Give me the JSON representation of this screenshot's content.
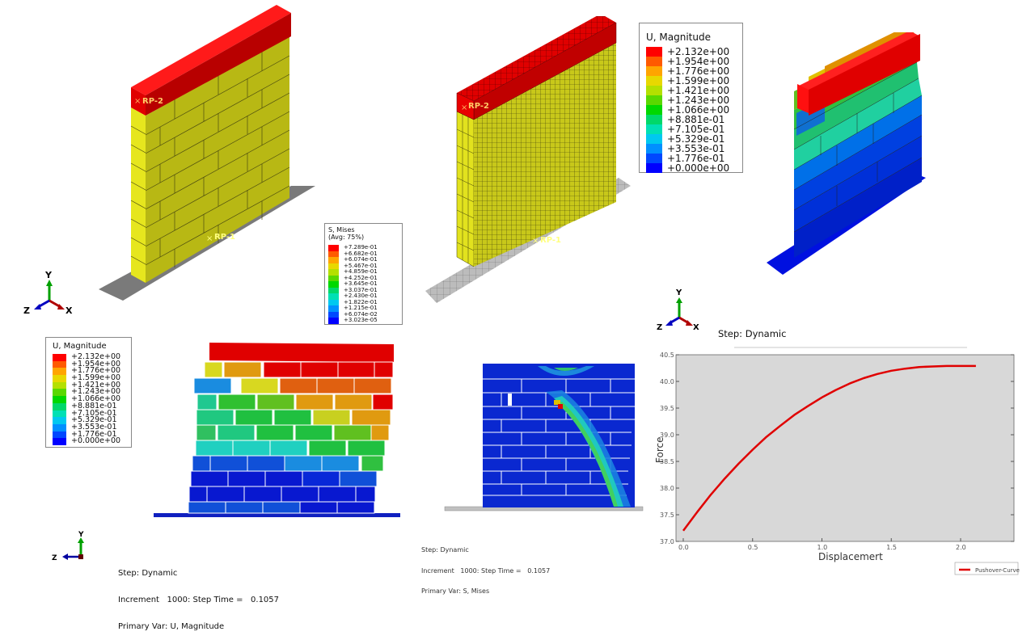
{
  "views": {
    "undeformed_coarse": {
      "ref_points": [
        "RP-2",
        "RP-1"
      ],
      "colors": {
        "wall": "#d2d21a",
        "beam": "#e00000",
        "base": "#808080"
      }
    },
    "meshed": {
      "ref_points": [
        "RP-2",
        "RP-1"
      ],
      "colors": {
        "wall": "#d2d21a",
        "beam": "#e00000",
        "base": "#b8b8b8"
      }
    },
    "deformed_3d": {
      "legend": {
        "title": "U, Magnitude",
        "values": [
          "+2.132e+00",
          "+1.954e+00",
          "+1.776e+00",
          "+1.599e+00",
          "+1.421e+00",
          "+1.243e+00",
          "+1.066e+00",
          "+8.881e-01",
          "+7.105e-01",
          "+5.329e-01",
          "+3.553e-01",
          "+1.776e-01",
          "+0.000e+00"
        ]
      },
      "triad": {
        "x": "X",
        "y": "Y",
        "z": "Z"
      },
      "info": {
        "step": "Step: Dynamic",
        "increment": "Increment   1000: Step Time =   0.1057",
        "primary_var": "Primary Var: U, Magnitude"
      }
    },
    "stress_legend": {
      "title": "S, Mises",
      "subtitle": "(Avg: 75%)",
      "values": [
        "+7.289e-01",
        "+6.682e-01",
        "+6.074e-01",
        "+5.467e-01",
        "+4.859e-01",
        "+4.252e-01",
        "+3.645e-01",
        "+3.037e-01",
        "+2.430e-01",
        "+1.822e-01",
        "+1.215e-01",
        "+6.074e-02",
        "+3.023e-05"
      ]
    },
    "deformed_front_u": {
      "legend": {
        "title": "U, Magnitude",
        "values": [
          "+2.132e+00",
          "+1.954e+00",
          "+1.776e+00",
          "+1.599e+00",
          "+1.421e+00",
          "+1.243e+00",
          "+1.066e+00",
          "+8.881e-01",
          "+7.105e-01",
          "+5.329e-01",
          "+3.553e-01",
          "+1.776e-01",
          "+0.000e+00"
        ]
      },
      "triad": {
        "y": "Y",
        "z": "Z"
      },
      "info": {
        "step": "Step: Dynamic",
        "increment": "Increment   1000: Step Time =   0.1057",
        "primary_var": "Primary Var: U, Magnitude"
      }
    },
    "deformed_front_s": {
      "info": {
        "step": "Step: Dynamic",
        "increment": "Increment   1000: Step Time =   0.1057",
        "primary_var": "Primary Var: S, Mises"
      }
    },
    "main_triad": {
      "x": "X",
      "y": "Y",
      "z": "Z"
    }
  },
  "colormap": [
    "#ff0000",
    "#ff5a00",
    "#ffa500",
    "#e8d800",
    "#b4e000",
    "#5ad800",
    "#00d800",
    "#00d86a",
    "#00e0b4",
    "#00c8f0",
    "#0090ff",
    "#0048ff",
    "#0000ff"
  ],
  "chart_data": {
    "type": "line",
    "title": "",
    "xlabel": "Displacemert",
    "ylabel": "Force",
    "xlim": [
      0.0,
      2.35
    ],
    "ylim": [
      37.0,
      40.5
    ],
    "x_ticks": [
      "0.0",
      "0.5",
      "1.0",
      "1.5",
      "2.0"
    ],
    "y_ticks": [
      "37.0",
      "37.5",
      "38.0",
      "38.5",
      "39.0",
      "39.5",
      "40.0",
      "40.5"
    ],
    "grid": false,
    "legend_position": "lower right",
    "background": "#d8d8d8",
    "series": [
      {
        "name": "Pushover-Curve",
        "color": "#e00000",
        "x": [
          0.0,
          0.1,
          0.2,
          0.3,
          0.4,
          0.5,
          0.6,
          0.7,
          0.8,
          0.9,
          1.0,
          1.1,
          1.2,
          1.3,
          1.4,
          1.5,
          1.6,
          1.7,
          1.8,
          1.9,
          2.0,
          2.11
        ],
        "values": [
          37.2,
          37.55,
          37.88,
          38.18,
          38.46,
          38.72,
          38.96,
          39.17,
          39.37,
          39.54,
          39.7,
          39.84,
          39.96,
          40.06,
          40.14,
          40.2,
          40.24,
          40.27,
          40.28,
          40.29,
          40.29,
          40.29
        ]
      }
    ]
  }
}
